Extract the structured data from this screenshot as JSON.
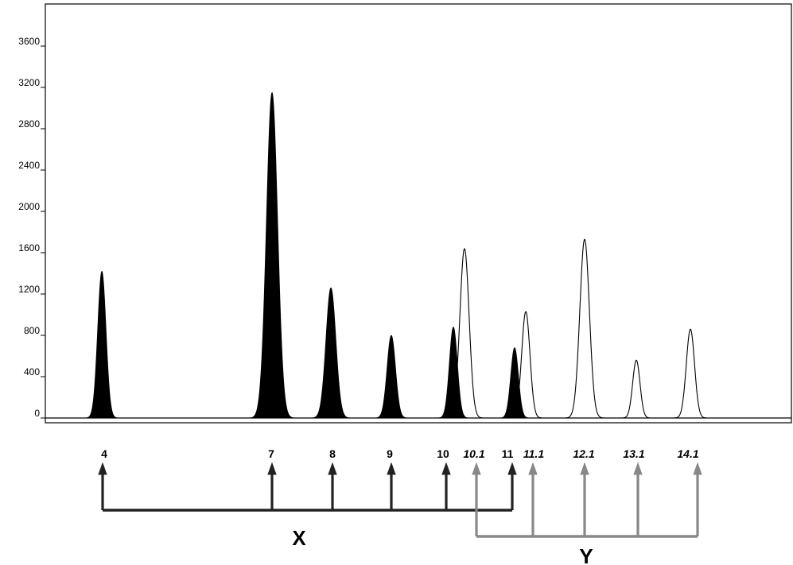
{
  "chart_data": {
    "type": "area",
    "title": "",
    "xlabel": "",
    "ylabel": "",
    "ylim": [
      0,
      3800
    ],
    "y_ticks": [
      "0",
      "400",
      "800",
      "1200",
      "1600",
      "2000",
      "2400",
      "2800",
      "3200",
      "3600"
    ],
    "grid": false,
    "legend": "none",
    "colors": {
      "x_series": "#000000",
      "y_series": "#000000",
      "y_arrow": "#888888",
      "x_arrow": "#222222"
    },
    "groups": [
      {
        "label": "X",
        "fill": "solid",
        "peaks": [
          {
            "label": "4",
            "height": 1420
          },
          {
            "label": "7",
            "height": 3150
          },
          {
            "label": "8",
            "height": 1260
          },
          {
            "label": "9",
            "height": 800
          },
          {
            "label": "10",
            "height": 880
          },
          {
            "label": "11",
            "height": 680
          }
        ]
      },
      {
        "label": "Y",
        "fill": "outline",
        "peaks": [
          {
            "label": "10.1",
            "height": 1640
          },
          {
            "label": "11.1",
            "height": 1030
          },
          {
            "label": "12.1",
            "height": 1730
          },
          {
            "label": "13.1",
            "height": 560
          },
          {
            "label": "14.1",
            "height": 860
          }
        ]
      }
    ]
  }
}
